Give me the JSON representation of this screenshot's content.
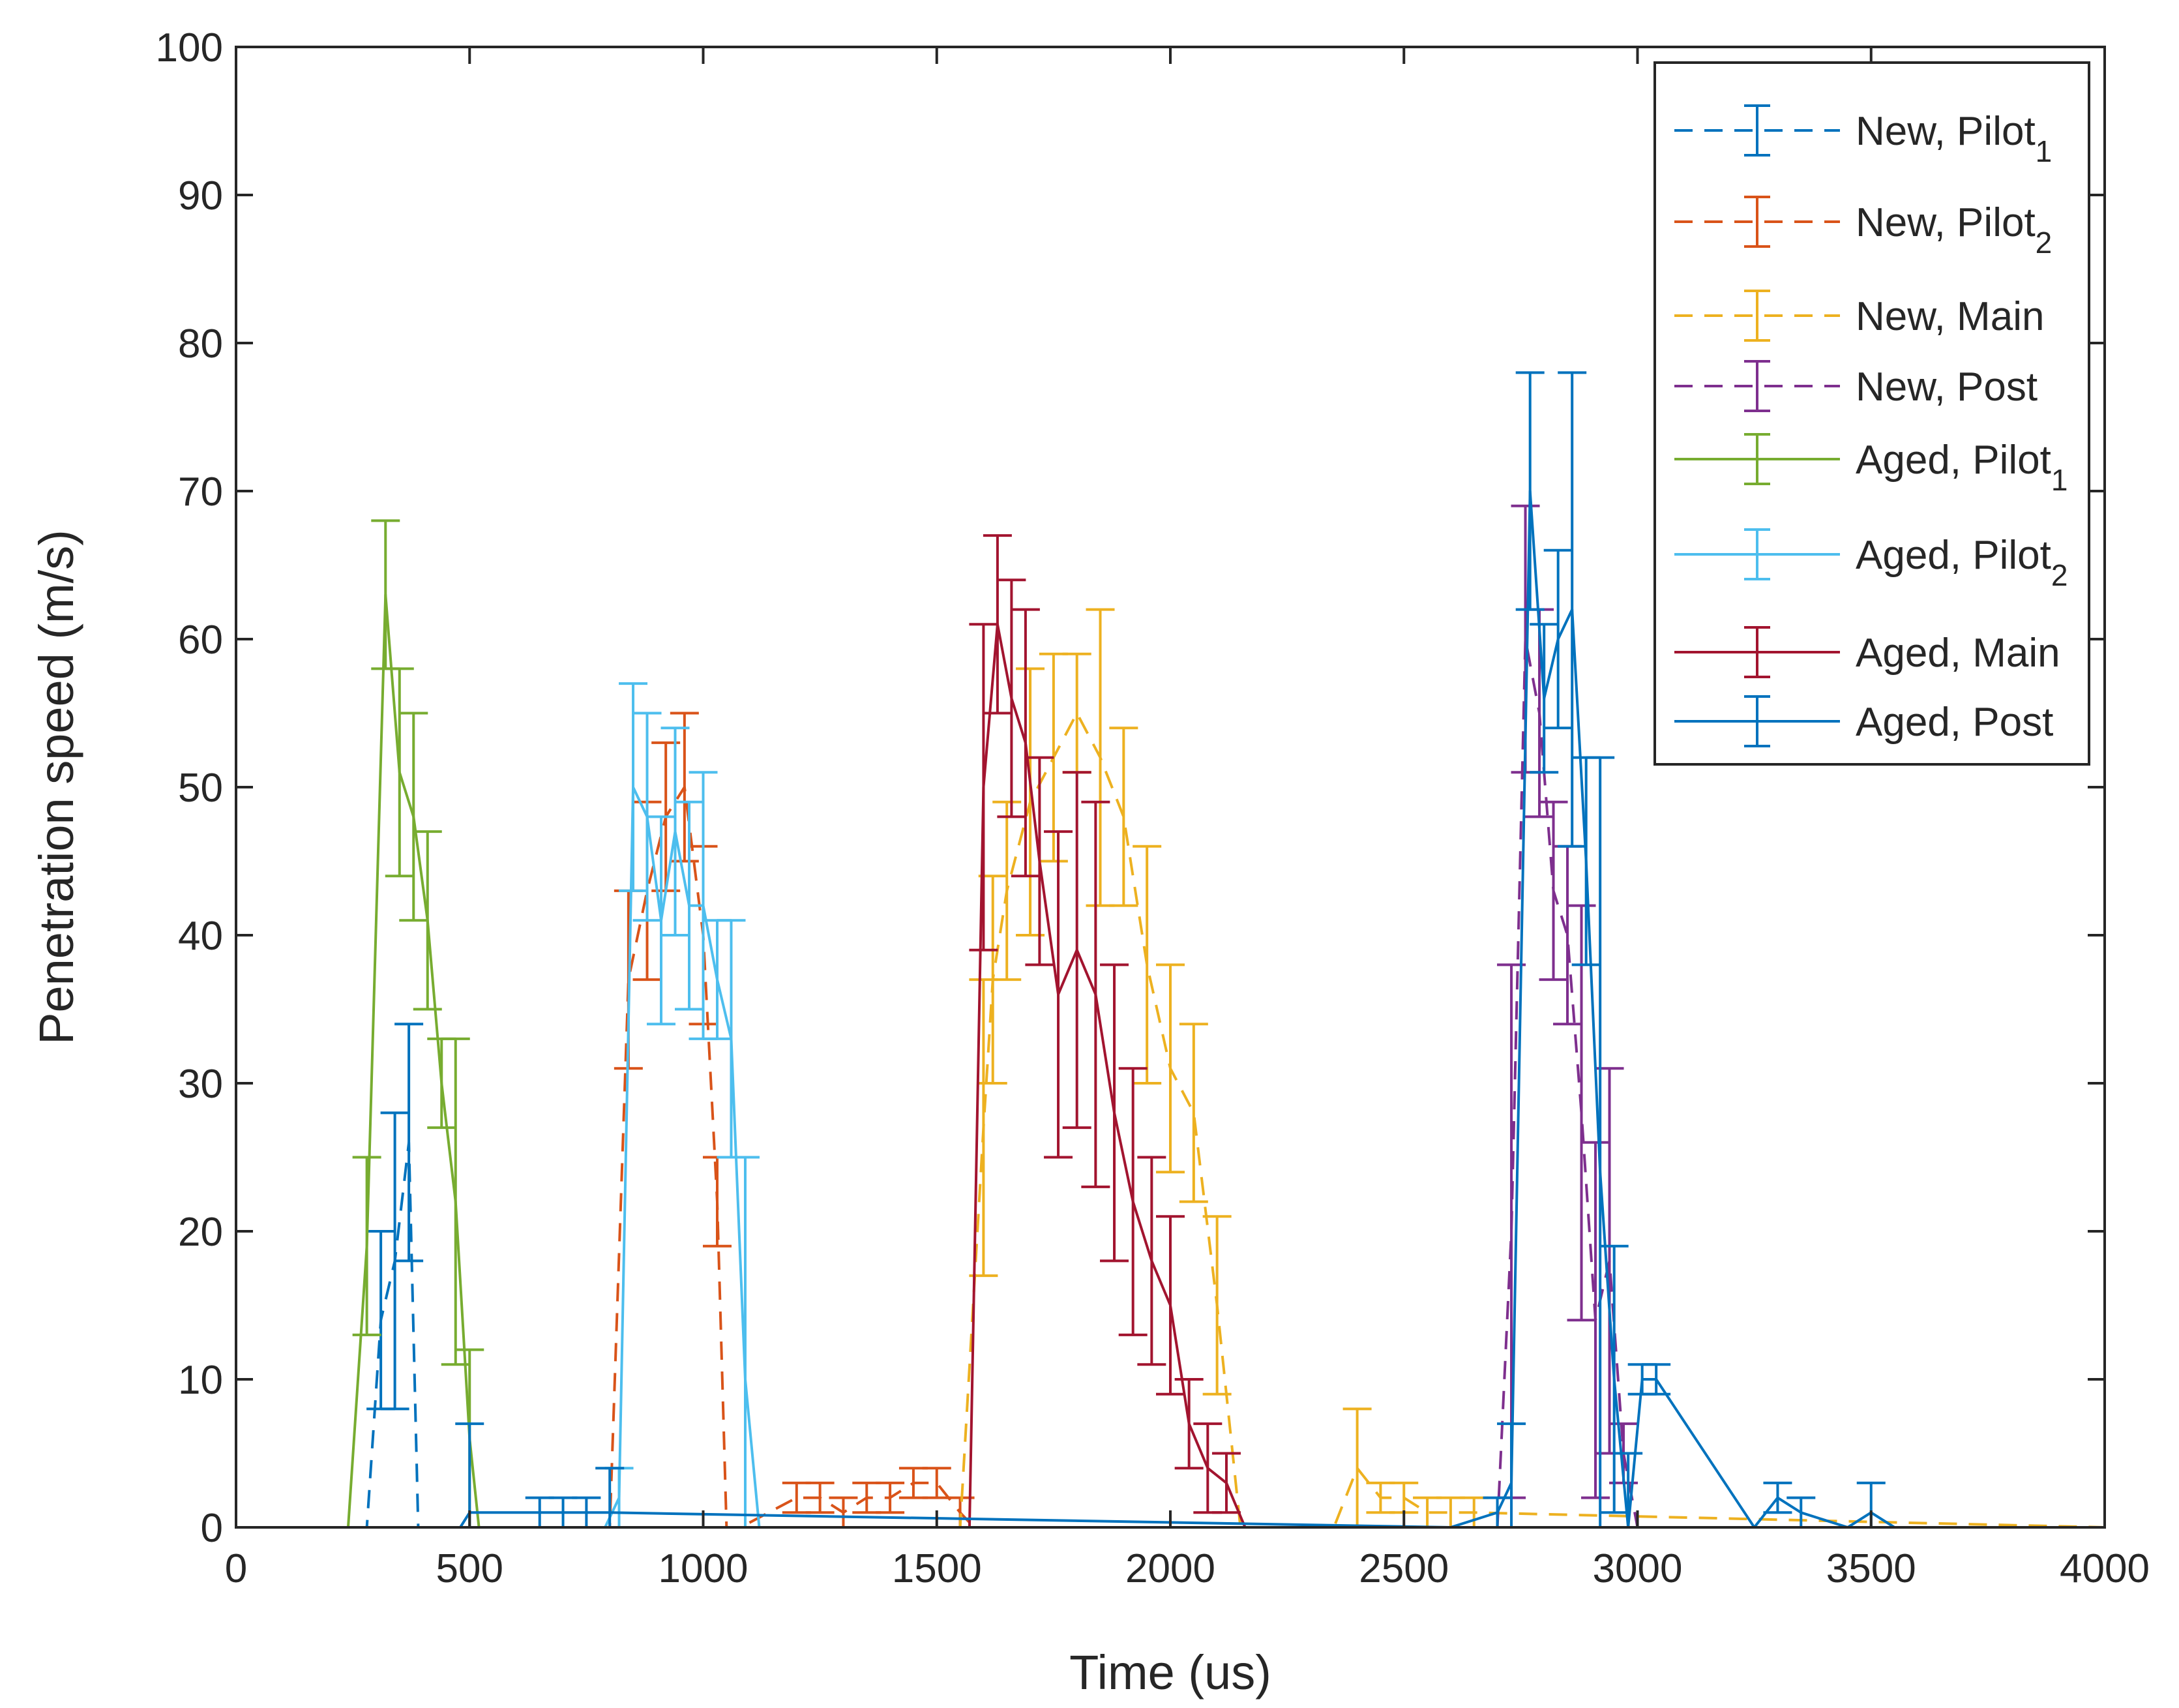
{
  "chart_data": {
    "type": "line",
    "title": "",
    "xlabel": "Time (us)",
    "ylabel": "Penetration speed (m/s)",
    "xlim": [
      0,
      4000
    ],
    "ylim": [
      0,
      100
    ],
    "xticks": [
      0,
      500,
      1000,
      1500,
      2000,
      2500,
      3000,
      3500,
      4000
    ],
    "yticks": [
      0,
      10,
      20,
      30,
      40,
      50,
      60,
      70,
      80,
      90,
      100
    ],
    "grid": false,
    "legend_position": "top-right",
    "series": [
      {
        "name": "New, Pilot",
        "sub": "1",
        "color": "#0072BD",
        "dash": true,
        "x": [
          0,
          280,
          310,
          340,
          370,
          390,
          420,
          4000
        ],
        "y": [
          0,
          0,
          14,
          18,
          26,
          0,
          0,
          0
        ],
        "err": [
          0,
          0,
          6,
          10,
          8,
          0,
          0,
          0
        ]
      },
      {
        "name": "New, Pilot",
        "sub": "2",
        "color": "#D95319",
        "dash": true,
        "x": [
          0,
          800,
          840,
          880,
          920,
          960,
          1000,
          1030,
          1050,
          1080,
          1200,
          1250,
          1300,
          1350,
          1400,
          1450,
          1500,
          1550,
          1580,
          4000
        ],
        "y": [
          0,
          0,
          37,
          43,
          48,
          50,
          40,
          22,
          0,
          0,
          2,
          2,
          1,
          2,
          2,
          3,
          3,
          1,
          0,
          0
        ],
        "err": [
          0,
          0,
          6,
          6,
          5,
          5,
          6,
          3,
          0,
          0,
          1,
          1,
          1,
          1,
          1,
          1,
          1,
          1,
          0,
          0
        ]
      },
      {
        "name": "New, Main",
        "sub": "",
        "color": "#EDB120",
        "dash": true,
        "x": [
          0,
          1550,
          1600,
          1620,
          1650,
          1700,
          1750,
          1800,
          1850,
          1900,
          1950,
          2000,
          2050,
          2100,
          2150,
          2350,
          2400,
          2450,
          2500,
          2550,
          2600,
          2650,
          4000
        ],
        "y": [
          0,
          0,
          27,
          37,
          43,
          49,
          52,
          55,
          52,
          48,
          38,
          31,
          28,
          15,
          0,
          0,
          4,
          2,
          2,
          1,
          1,
          1,
          0
        ],
        "err": [
          0,
          0,
          10,
          7,
          6,
          9,
          7,
          4,
          10,
          6,
          8,
          7,
          6,
          6,
          0,
          0,
          4,
          1,
          1,
          1,
          1,
          1,
          0
        ]
      },
      {
        "name": "New, Post",
        "sub": "",
        "color": "#7E2F8E",
        "dash": true,
        "x": [
          0,
          2700,
          2730,
          2760,
          2790,
          2820,
          2850,
          2880,
          2910,
          2940,
          2970,
          3000,
          3030,
          4000
        ],
        "y": [
          0,
          0,
          20,
          60,
          55,
          43,
          40,
          28,
          14,
          18,
          5,
          0,
          0,
          0
        ],
        "err": [
          0,
          0,
          18,
          9,
          7,
          6,
          6,
          14,
          12,
          13,
          2,
          0,
          0,
          0
        ]
      },
      {
        "name": "Aged, Pilot",
        "sub": "1",
        "color": "#77AC30",
        "dash": false,
        "x": [
          0,
          240,
          280,
          320,
          350,
          380,
          410,
          440,
          470,
          500,
          520,
          4000
        ],
        "y": [
          0,
          0,
          19,
          63,
          51,
          48,
          41,
          30,
          22,
          6,
          0,
          0
        ],
        "err": [
          0,
          0,
          6,
          5,
          7,
          7,
          6,
          3,
          11,
          6,
          0,
          0
        ]
      },
      {
        "name": "Aged, Pilot",
        "sub": "2",
        "color": "#4DBEEE",
        "dash": false,
        "x": [
          0,
          790,
          820,
          850,
          880,
          910,
          940,
          970,
          1000,
          1030,
          1060,
          1090,
          1120,
          1150,
          4000
        ],
        "y": [
          0,
          0,
          2,
          50,
          48,
          41,
          47,
          42,
          42,
          37,
          33,
          10,
          0,
          0,
          0
        ],
        "err": [
          0,
          0,
          2,
          7,
          7,
          7,
          7,
          7,
          9,
          4,
          8,
          15,
          0,
          0,
          0
        ]
      },
      {
        "name": "Aged, Main",
        "sub": "",
        "color": "#A2142F",
        "dash": false,
        "x": [
          0,
          1570,
          1600,
          1630,
          1660,
          1690,
          1720,
          1760,
          1800,
          1840,
          1880,
          1920,
          1960,
          2000,
          2040,
          2080,
          2120,
          2160,
          2200,
          4000
        ],
        "y": [
          0,
          0,
          50,
          61,
          56,
          53,
          45,
          36,
          39,
          36,
          28,
          22,
          18,
          15,
          7,
          4,
          3,
          0,
          0,
          0
        ],
        "err": [
          0,
          0,
          11,
          6,
          8,
          9,
          7,
          11,
          12,
          13,
          10,
          9,
          7,
          6,
          3,
          3,
          2,
          0,
          0,
          0
        ]
      },
      {
        "name": "Aged, Post",
        "sub": "",
        "color": "#0072BD",
        "dash": false,
        "x": [
          0,
          480,
          500,
          550,
          600,
          650,
          700,
          750,
          800,
          2600,
          2700,
          2730,
          2770,
          2800,
          2830,
          2860,
          2890,
          2920,
          2950,
          2980,
          3010,
          3040,
          3250,
          3300,
          3350,
          3450,
          3500,
          3550,
          4000
        ],
        "y": [
          0,
          0,
          1,
          1,
          1,
          1,
          1,
          1,
          1,
          0,
          1,
          3,
          70,
          56,
          60,
          62,
          45,
          24,
          10,
          0,
          10,
          10,
          0,
          2,
          1,
          0,
          1,
          0,
          0
        ],
        "err": [
          0,
          0,
          6,
          0,
          0,
          1,
          1,
          1,
          3,
          0,
          1,
          4,
          8,
          5,
          6,
          16,
          7,
          28,
          9,
          5,
          1,
          1,
          0,
          1,
          1,
          0,
          2,
          0,
          0
        ]
      }
    ]
  }
}
